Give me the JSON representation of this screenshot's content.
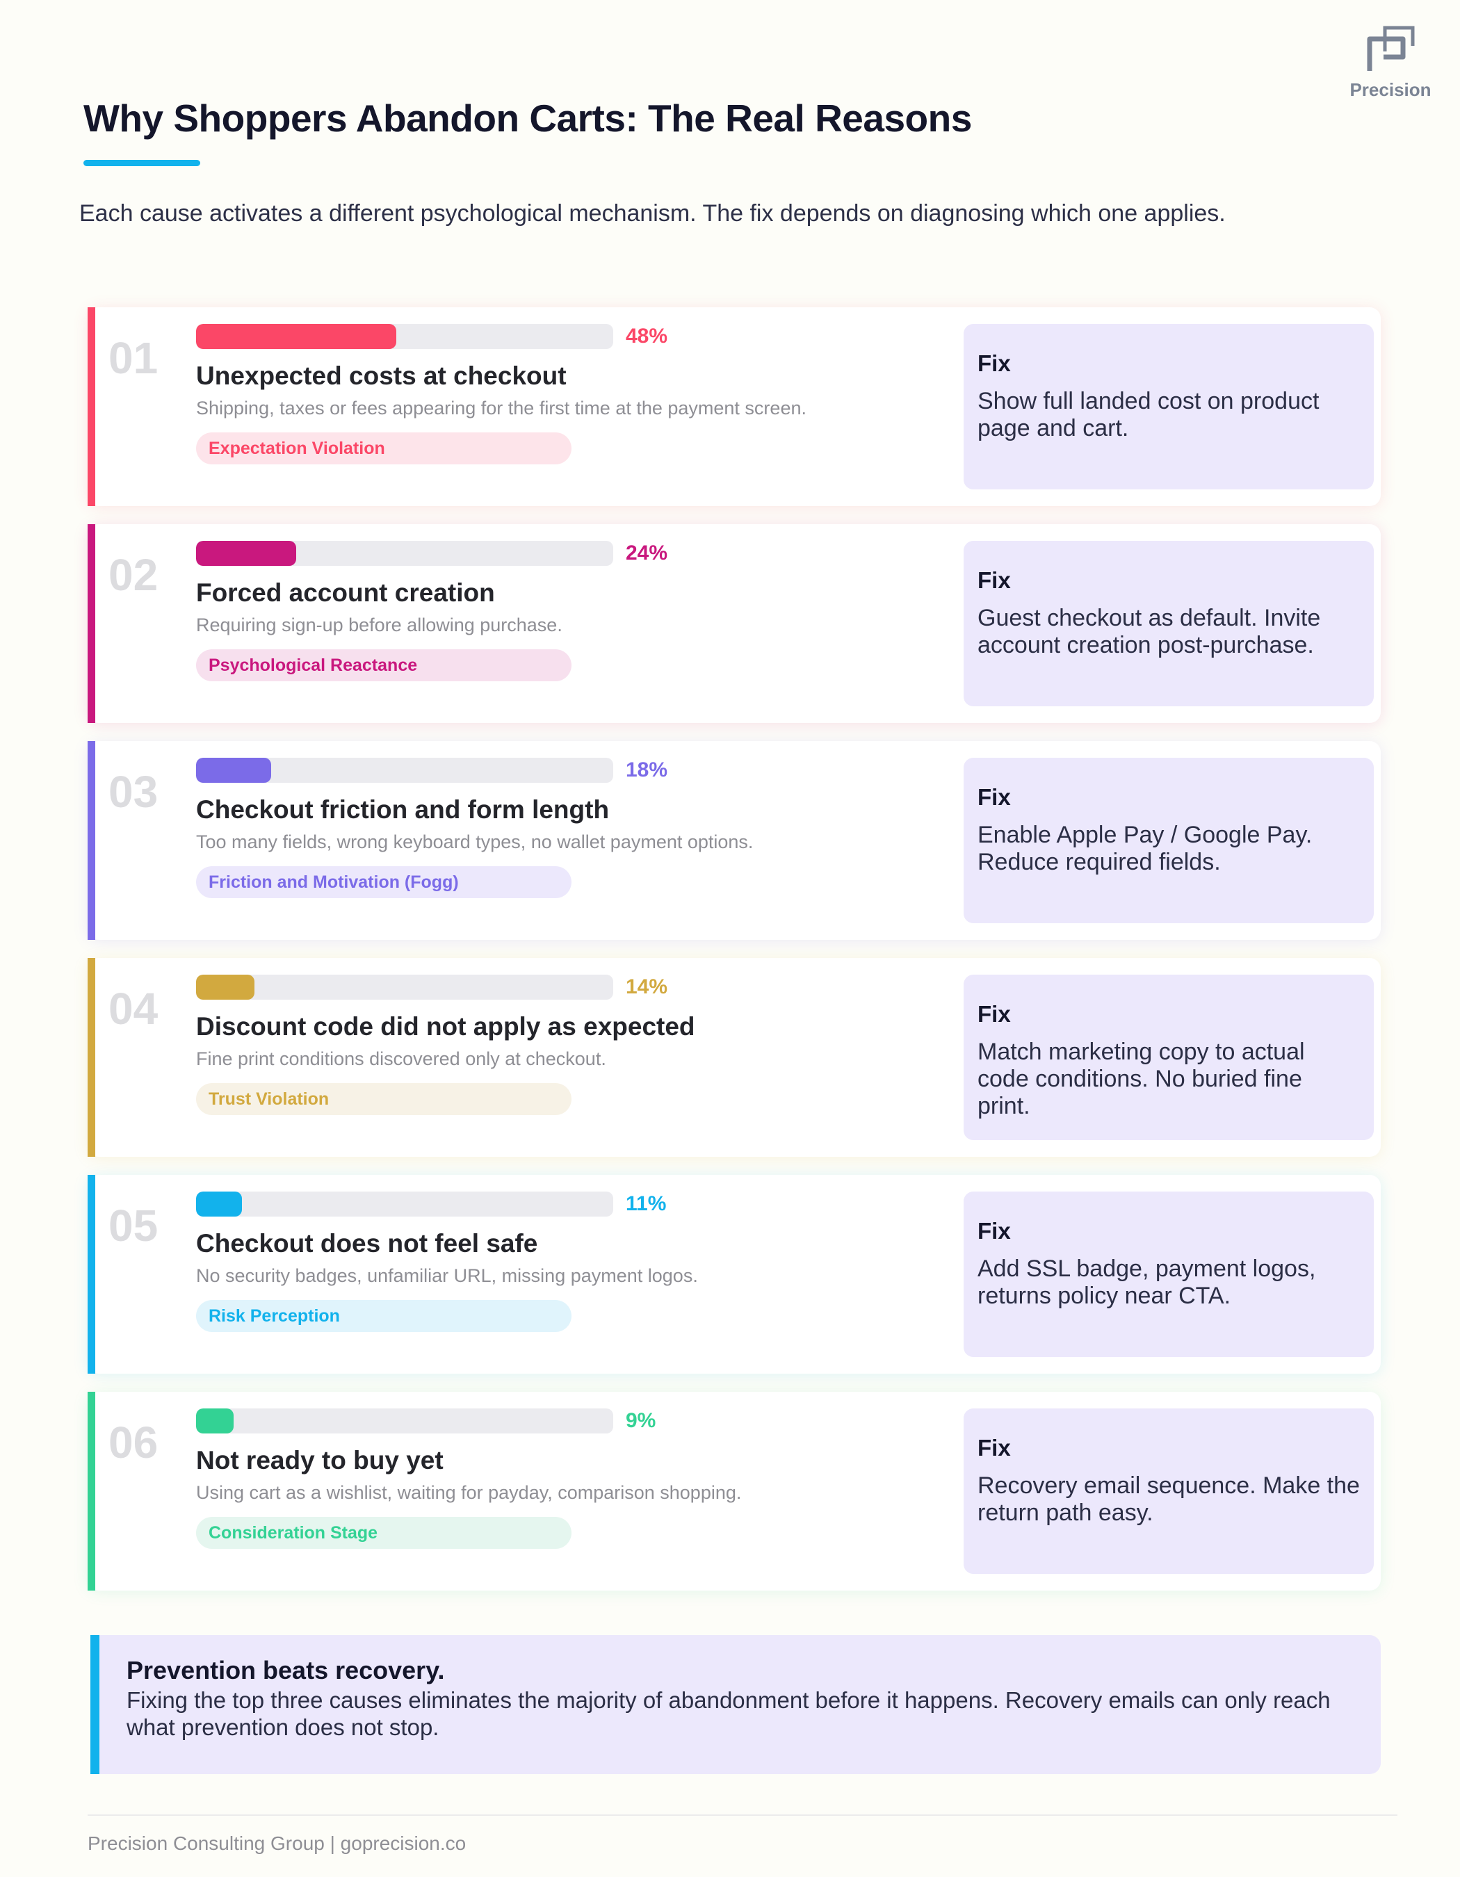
{
  "brand": {
    "name": "Precision",
    "logo_icon": "precision-p-icon"
  },
  "header": {
    "title": "Why Shoppers Abandon Carts: The Real Reasons",
    "subtitle": "Each cause activates a different psychological mechanism. The fix depends on diagnosing which one applies.",
    "accent_color": "#12b2ec"
  },
  "causes": [
    {
      "number": "01",
      "percent": 48,
      "percent_label": "48%",
      "title": "Unexpected costs at checkout",
      "description": "Shipping, taxes or fees appearing for the first time at the payment screen.",
      "mechanism": "Expectation Violation",
      "fix_label": "Fix",
      "fix_text": "Show full landed cost on product page and cart.",
      "color": "#fb4767",
      "tag_bg": "#fde4ea"
    },
    {
      "number": "02",
      "percent": 24,
      "percent_label": "24%",
      "title": "Forced account creation",
      "description": "Requiring sign-up before allowing purchase.",
      "mechanism": "Psychological Reactance",
      "fix_label": "Fix",
      "fix_text": "Guest checkout as default. Invite account creation post-purchase.",
      "color": "#c9187e",
      "tag_bg": "#f7e0ee"
    },
    {
      "number": "03",
      "percent": 18,
      "percent_label": "18%",
      "title": "Checkout friction and form length",
      "description": "Too many fields, wrong keyboard types, no wallet payment options.",
      "mechanism": "Friction and Motivation (Fogg)",
      "fix_label": "Fix",
      "fix_text": "Enable Apple Pay / Google Pay. Reduce required fields.",
      "color": "#7b6be8",
      "tag_bg": "#ece8fc"
    },
    {
      "number": "04",
      "percent": 14,
      "percent_label": "14%",
      "title": "Discount code did not apply as expected",
      "description": "Fine print conditions discovered only at checkout.",
      "mechanism": "Trust Violation",
      "fix_label": "Fix",
      "fix_text": "Match marketing copy to actual code conditions. No buried fine print.",
      "color": "#d2a93f",
      "tag_bg": "#f7f2e6"
    },
    {
      "number": "05",
      "percent": 11,
      "percent_label": "11%",
      "title": "Checkout does not feel safe",
      "description": "No security badges, unfamiliar URL, missing payment logos.",
      "mechanism": "Risk Perception",
      "fix_label": "Fix",
      "fix_text": "Add SSL badge, payment logos, returns policy near CTA.",
      "color": "#12b2ec",
      "tag_bg": "#e0f4fc"
    },
    {
      "number": "06",
      "percent": 9,
      "percent_label": "9%",
      "title": "Not ready to buy yet",
      "description": "Using cart as a wishlist, waiting for payday, comparison shopping.",
      "mechanism": "Consideration Stage",
      "fix_label": "Fix",
      "fix_text": "Recovery email sequence. Make the return path easy.",
      "color": "#33d294",
      "tag_bg": "#e5f6ef"
    }
  ],
  "callout": {
    "title": "Prevention beats recovery.",
    "text": "Fixing the top three causes eliminates the majority of abandonment before it happens. Recovery emails can only reach what prevention does not stop."
  },
  "footer": {
    "text": "Precision Consulting Group | goprecision.co"
  }
}
